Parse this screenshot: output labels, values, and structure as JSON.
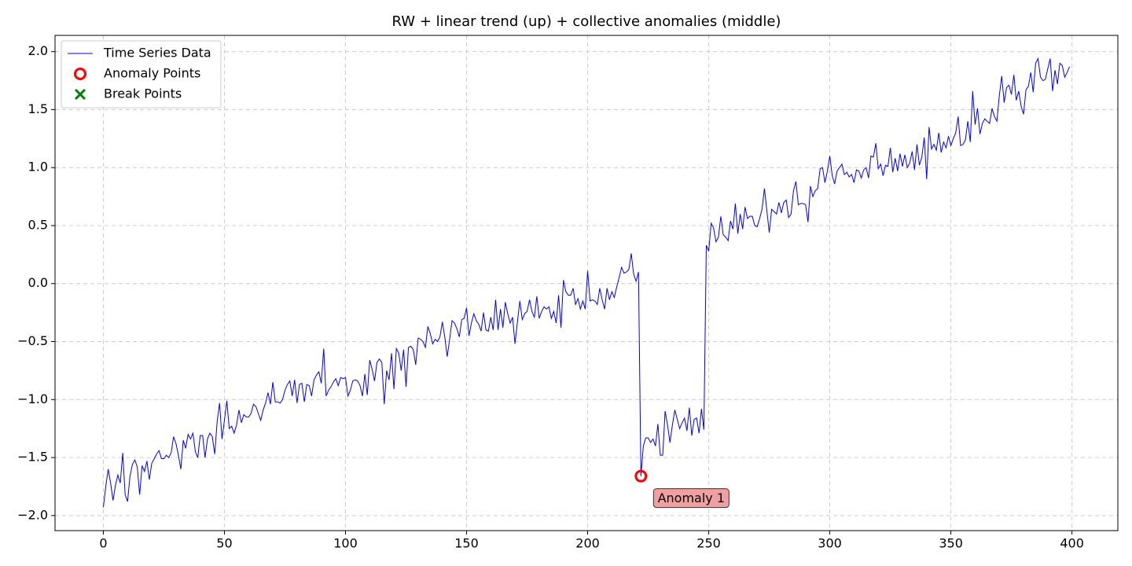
{
  "chart_data": {
    "type": "line",
    "title": "RW + linear trend (up) + collective anomalies (middle)",
    "xlim": [
      -19.95,
      418.95
    ],
    "ylim": [
      -2.13,
      2.14
    ],
    "xticks": [
      0,
      50,
      100,
      150,
      200,
      250,
      300,
      350,
      400
    ],
    "yticks": [
      {
        "value": -2,
        "label": "−2.0"
      },
      {
        "value": -1.5,
        "label": "−1.5"
      },
      {
        "value": -1,
        "label": "−1.0"
      },
      {
        "value": -0.5,
        "label": "−0.5"
      },
      {
        "value": 0,
        "label": "0.0"
      },
      0.5,
      {
        "value": 1,
        "label": "1.0"
      },
      1.5,
      {
        "value": 2,
        "label": "2.0"
      }
    ],
    "grid": true,
    "legend": "upper left",
    "series": [
      {
        "name": "Time Series Data",
        "color": "#0000ff",
        "marker": "line",
        "x": [
          0,
          1,
          2,
          3,
          4,
          5,
          6,
          7,
          8,
          9,
          10,
          11,
          12,
          13,
          14,
          15,
          16,
          17,
          18,
          19,
          20,
          21,
          22,
          23,
          24,
          25,
          26,
          27,
          28,
          29,
          30,
          31,
          32,
          33,
          34,
          35,
          36,
          37,
          38,
          39,
          40,
          41,
          42,
          43,
          44,
          45,
          46,
          47,
          48,
          49,
          50,
          51,
          52,
          53,
          54,
          55,
          56,
          57,
          58,
          59,
          60,
          61,
          62,
          63,
          64,
          65,
          66,
          67,
          68,
          69,
          70,
          71,
          72,
          73,
          74,
          75,
          76,
          77,
          78,
          79,
          80,
          81,
          82,
          83,
          84,
          85,
          86,
          87,
          88,
          89,
          90,
          91,
          92,
          93,
          94,
          95,
          96,
          97,
          98,
          99,
          100,
          101,
          102,
          103,
          104,
          105,
          106,
          107,
          108,
          109,
          110,
          111,
          112,
          113,
          114,
          115,
          116,
          117,
          118,
          119,
          120,
          121,
          122,
          123,
          124,
          125,
          126,
          127,
          128,
          129,
          130,
          131,
          132,
          133,
          134,
          135,
          136,
          137,
          138,
          139,
          140,
          141,
          142,
          143,
          144,
          145,
          146,
          147,
          148,
          149,
          150,
          151,
          152,
          153,
          154,
          155,
          156,
          157,
          158,
          159,
          160,
          161,
          162,
          163,
          164,
          165,
          166,
          167,
          168,
          169,
          170,
          171,
          172,
          173,
          174,
          175,
          176,
          177,
          178,
          179,
          180,
          181,
          182,
          183,
          184,
          185,
          186,
          187,
          188,
          189,
          190,
          191,
          192,
          193,
          194,
          195,
          196,
          197,
          198,
          199,
          200,
          201,
          202,
          203,
          204,
          205,
          206,
          207,
          208,
          209,
          210,
          211,
          212,
          213,
          214,
          215,
          216,
          217,
          218,
          219,
          220,
          221,
          222,
          223,
          224,
          225,
          226,
          227,
          228,
          229,
          230,
          231,
          232,
          233,
          234,
          235,
          236,
          237,
          238,
          239,
          240,
          241,
          242,
          243,
          244,
          245,
          246,
          247,
          248,
          249,
          250,
          251,
          252,
          253,
          254,
          255,
          256,
          257,
          258,
          259,
          260,
          261,
          262,
          263,
          264,
          265,
          266,
          267,
          268,
          269,
          270,
          271,
          272,
          273,
          274,
          275,
          276,
          277,
          278,
          279,
          280,
          281,
          282,
          283,
          284,
          285,
          286,
          287,
          288,
          289,
          290,
          291,
          292,
          293,
          294,
          295,
          296,
          297,
          298,
          299,
          300,
          301,
          302,
          303,
          304,
          305,
          306,
          307,
          308,
          309,
          310,
          311,
          312,
          313,
          314,
          315,
          316,
          317,
          318,
          319,
          320,
          321,
          322,
          323,
          324,
          325,
          326,
          327,
          328,
          329,
          330,
          331,
          332,
          333,
          334,
          335,
          336,
          337,
          338,
          339,
          340,
          341,
          342,
          343,
          344,
          345,
          346,
          347,
          348,
          349,
          350,
          351,
          352,
          353,
          354,
          355,
          356,
          357,
          358,
          359,
          360,
          361,
          362,
          363,
          364,
          365,
          366,
          367,
          368,
          369,
          370,
          371,
          372,
          373,
          374,
          375,
          376,
          377,
          378,
          379,
          380,
          381,
          382,
          383,
          384,
          385,
          386,
          387,
          388,
          389,
          390,
          391,
          392,
          393,
          394,
          395,
          396,
          397,
          398,
          399
        ],
        "values": [
          -1.93,
          -1.75,
          -1.6,
          -1.72,
          -1.87,
          -1.74,
          -1.65,
          -1.72,
          -1.46,
          -1.82,
          -1.88,
          -1.66,
          -1.56,
          -1.52,
          -1.58,
          -1.82,
          -1.57,
          -1.62,
          -1.53,
          -1.69,
          -1.55,
          -1.51,
          -1.47,
          -1.44,
          -1.51,
          -1.51,
          -1.48,
          -1.5,
          -1.46,
          -1.32,
          -1.38,
          -1.48,
          -1.6,
          -1.35,
          -1.42,
          -1.3,
          -1.34,
          -1.29,
          -1.45,
          -1.5,
          -1.31,
          -1.31,
          -1.5,
          -1.34,
          -1.29,
          -1.32,
          -1.47,
          -1.19,
          -1.03,
          -1.34,
          -1.18,
          -1.01,
          -1.25,
          -1.23,
          -1.29,
          -1.22,
          -1.09,
          -1.2,
          -1.13,
          -1.15,
          -1.15,
          -1.12,
          -1.04,
          -1.06,
          -1.12,
          -1.18,
          -1.09,
          -1.03,
          -0.94,
          -1.04,
          -0.85,
          -1.02,
          -1.02,
          -1.03,
          -1.0,
          -0.92,
          -0.87,
          -0.84,
          -0.97,
          -0.83,
          -1.03,
          -0.87,
          -0.86,
          -1.02,
          -0.87,
          -0.88,
          -0.97,
          -0.83,
          -0.79,
          -0.76,
          -0.86,
          -0.56,
          -0.97,
          -0.92,
          -0.89,
          -0.85,
          -0.82,
          -0.88,
          -0.81,
          -0.82,
          -0.81,
          -0.97,
          -0.92,
          -0.84,
          -0.83,
          -0.84,
          -0.88,
          -0.97,
          -0.78,
          -0.96,
          -0.66,
          -0.74,
          -0.84,
          -0.68,
          -0.65,
          -0.68,
          -1.04,
          -0.75,
          -0.83,
          -0.6,
          -0.91,
          -0.56,
          -0.6,
          -0.75,
          -0.57,
          -0.89,
          -0.55,
          -0.54,
          -0.57,
          -0.7,
          -0.47,
          -0.48,
          -0.5,
          -0.55,
          -0.37,
          -0.43,
          -0.52,
          -0.48,
          -0.5,
          -0.46,
          -0.33,
          -0.46,
          -0.63,
          -0.48,
          -0.32,
          -0.34,
          -0.39,
          -0.46,
          -0.31,
          -0.3,
          -0.21,
          -0.45,
          -0.34,
          -0.26,
          -0.32,
          -0.35,
          -0.41,
          -0.25,
          -0.4,
          -0.41,
          -0.29,
          -0.4,
          -0.14,
          -0.4,
          -0.22,
          -0.38,
          -0.16,
          -0.26,
          -0.34,
          -0.29,
          -0.52,
          -0.33,
          -0.15,
          -0.31,
          -0.26,
          -0.24,
          -0.14,
          -0.24,
          -0.29,
          -0.11,
          -0.3,
          -0.24,
          -0.2,
          -0.22,
          -0.2,
          -0.3,
          -0.24,
          -0.34,
          -0.1,
          -0.38,
          0.03,
          -0.07,
          -0.1,
          -0.1,
          -0.04,
          -0.18,
          -0.13,
          -0.22,
          -0.15,
          -0.22,
          0.11,
          -0.15,
          -0.14,
          -0.15,
          -0.18,
          -0.04,
          -0.14,
          -0.22,
          -0.04,
          -0.14,
          -0.07,
          -0.12,
          -0.03,
          0.05,
          0.14,
          0.09,
          0.1,
          0.12,
          0.26,
          0.08,
          0.02,
          0.1,
          -1.66,
          -1.4,
          -1.33,
          -1.33,
          -1.37,
          -1.34,
          -1.4,
          -1.21,
          -1.48,
          -1.48,
          -1.1,
          -1.22,
          -1.37,
          -1.22,
          -1.09,
          -1.17,
          -1.25,
          -1.2,
          -1.16,
          -1.27,
          -1.07,
          -1.31,
          -1.17,
          -1.16,
          -1.29,
          -1.08,
          -1.26,
          0.33,
          0.28,
          0.52,
          0.48,
          0.36,
          0.4,
          0.58,
          0.42,
          0.4,
          0.37,
          0.54,
          0.47,
          0.69,
          0.43,
          0.6,
          0.47,
          0.66,
          0.56,
          0.58,
          0.58,
          0.5,
          0.49,
          0.56,
          0.64,
          0.82,
          0.63,
          0.44,
          0.64,
          0.62,
          0.6,
          0.7,
          0.61,
          0.7,
          0.72,
          0.57,
          0.6,
          0.8,
          0.88,
          0.68,
          0.69,
          0.69,
          0.68,
          0.53,
          0.84,
          0.75,
          0.8,
          0.82,
          0.99,
          1.0,
          0.87,
          0.97,
          1.1,
          0.93,
          0.86,
          0.97,
          1.0,
          1.03,
          0.94,
          0.96,
          0.92,
          0.94,
          0.87,
          0.98,
          0.97,
          0.91,
          0.98,
          1.0,
          0.91,
          1.1,
          1.09,
          1.21,
          0.99,
          1.03,
          0.93,
          1.02,
          1.01,
          1.17,
          0.96,
          1.08,
          0.97,
          1.12,
          1.01,
          1.11,
          1.0,
          1.04,
          1.14,
          0.98,
          1.2,
          1.02,
          1.09,
          1.26,
          0.9,
          1.35,
          1.16,
          1.2,
          1.15,
          1.3,
          1.13,
          1.22,
          1.17,
          1.27,
          1.19,
          1.25,
          1.3,
          1.44,
          1.19,
          1.2,
          1.24,
          1.4,
          1.22,
          1.66,
          1.37,
          1.51,
          1.29,
          1.38,
          1.42,
          1.4,
          1.38,
          1.51,
          1.44,
          1.4,
          1.62,
          1.79,
          1.56,
          1.69,
          1.71,
          1.63,
          1.8,
          1.58,
          1.66,
          1.53,
          1.46,
          1.67,
          1.7,
          1.82,
          1.65,
          1.9,
          1.94,
          1.78,
          1.75,
          1.76,
          1.85,
          1.94,
          1.66,
          1.84,
          1.72,
          1.9,
          1.88,
          1.78,
          1.82,
          1.87
        ]
      },
      {
        "name": "Anomaly Points",
        "color": "#ff0000",
        "marker": "o",
        "x": [
          222
        ],
        "values": [
          -1.66
        ]
      },
      {
        "name": "Break Points",
        "color": "#008000",
        "marker": "x",
        "x": [],
        "values": []
      }
    ],
    "annotations": [
      "Anomaly 1"
    ]
  }
}
